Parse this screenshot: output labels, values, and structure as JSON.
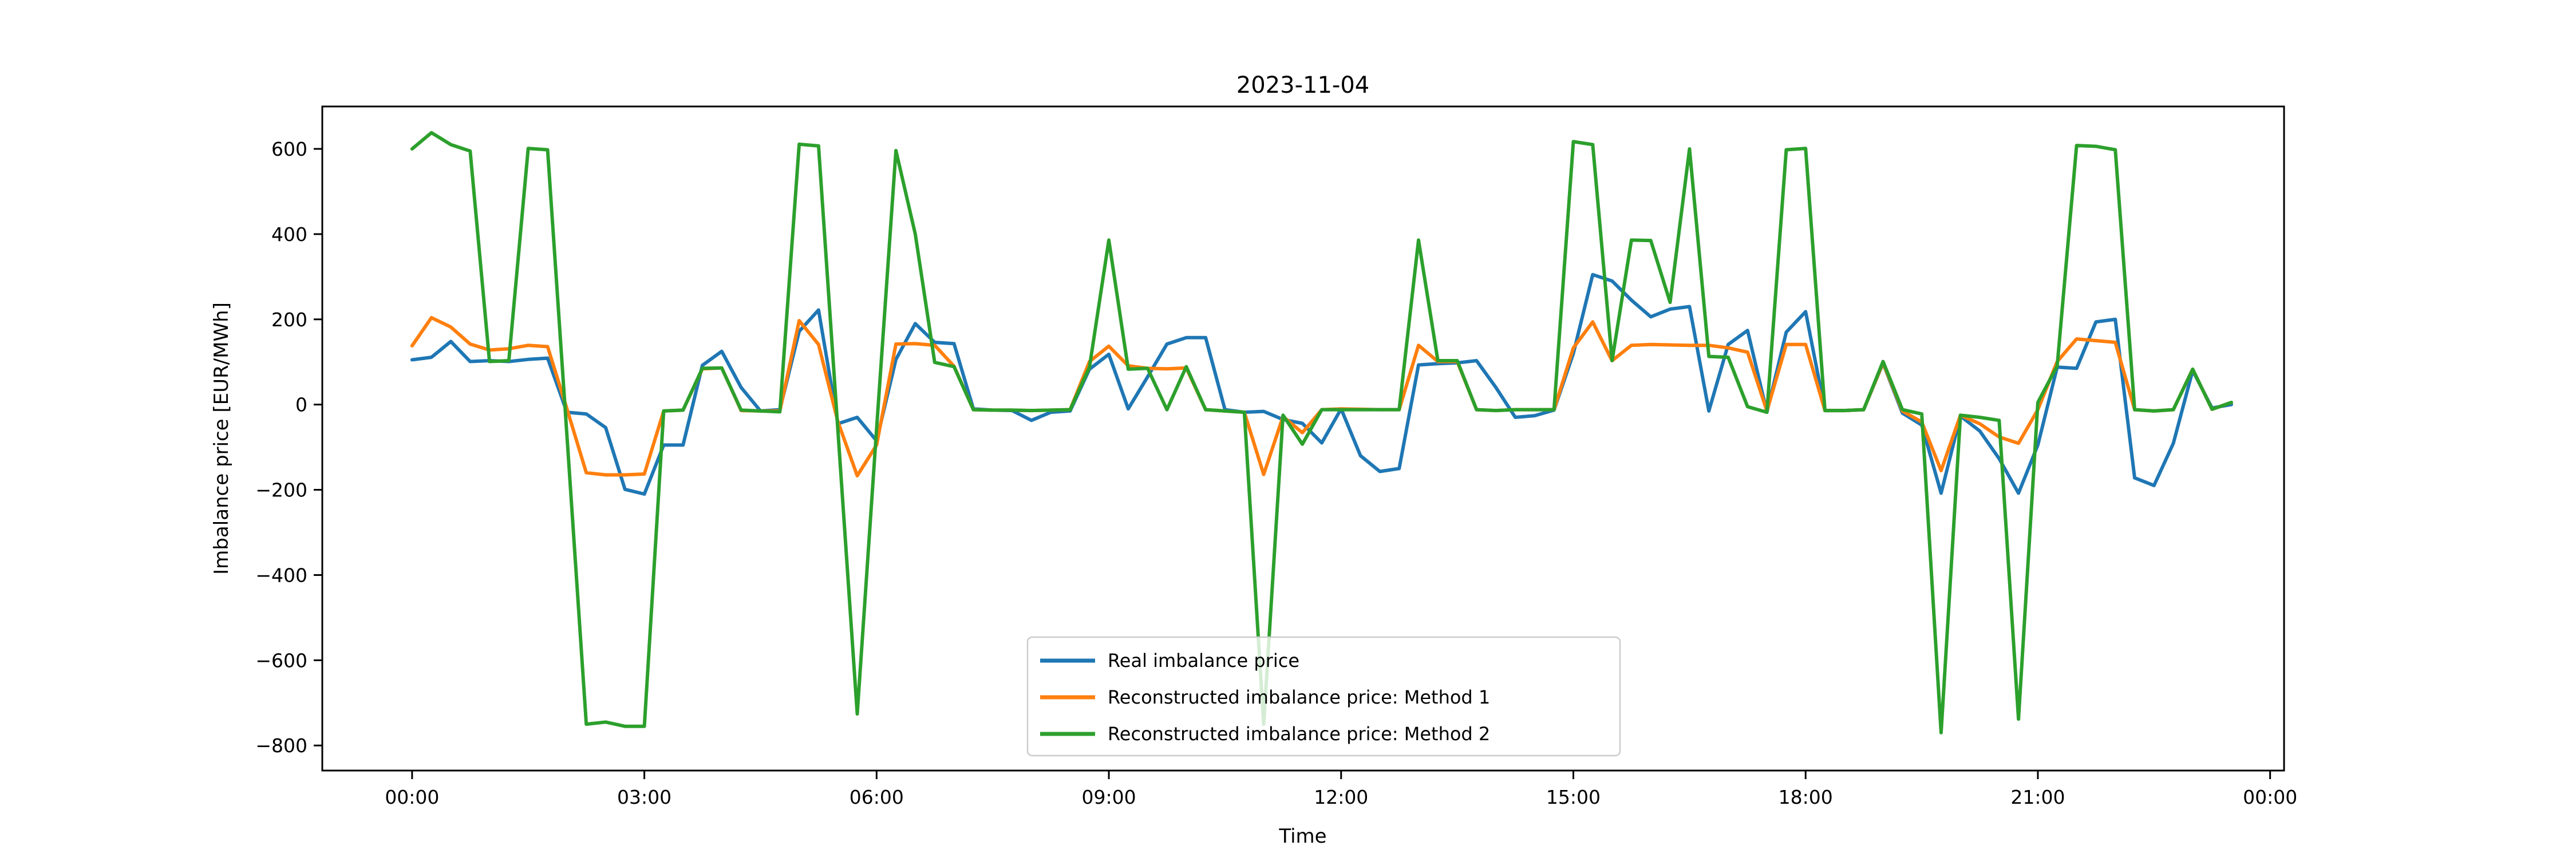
{
  "figure": {
    "title": "2023-11-04",
    "xlabel": "Time",
    "ylabel": "Imbalance price [EUR/MWh]",
    "background": "#ffffff",
    "frame_color": "#000000"
  },
  "legend": {
    "entries": [
      {
        "label": "Real imbalance price",
        "color": "#1f77b4"
      },
      {
        "label": "Reconstructed imbalance price: Method 1",
        "color": "#ff7f0e"
      },
      {
        "label": "Reconstructed imbalance price: Method 2",
        "color": "#2ca02c"
      }
    ],
    "border_color": "#cccccc",
    "background_opacity": 0.8
  },
  "chart_data": {
    "type": "line",
    "title": "2023-11-04",
    "xlabel": "Time",
    "ylabel": "Imbalance price [EUR/MWh]",
    "grid": false,
    "legend_position": "lower center",
    "ylim": [
      -858.8,
      699.5
    ],
    "xlim_hours": [
      -1.16,
      24.18
    ],
    "yticks": [
      600,
      400,
      200,
      0,
      -200,
      -400,
      -600,
      -800
    ],
    "ytick_labels": [
      "600",
      "400",
      "200",
      "0",
      "−200",
      "−400",
      "−600",
      "−800"
    ],
    "xtick_hours": [
      0,
      3,
      6,
      9,
      12,
      15,
      18,
      21,
      24
    ],
    "xtick_labels": [
      "00:00",
      "03:00",
      "06:00",
      "09:00",
      "12:00",
      "15:00",
      "18:00",
      "21:00",
      "00:00"
    ],
    "x": [
      "00:00",
      "00:15",
      "00:30",
      "00:45",
      "01:00",
      "01:15",
      "01:30",
      "01:45",
      "02:00",
      "02:15",
      "02:30",
      "02:45",
      "03:00",
      "03:15",
      "03:30",
      "03:45",
      "04:00",
      "04:15",
      "04:30",
      "04:45",
      "05:00",
      "05:15",
      "05:30",
      "05:45",
      "06:00",
      "06:15",
      "06:30",
      "06:45",
      "07:00",
      "07:15",
      "07:30",
      "07:45",
      "08:00",
      "08:15",
      "08:30",
      "08:45",
      "09:00",
      "09:15",
      "09:30",
      "09:45",
      "10:00",
      "10:15",
      "10:30",
      "10:45",
      "11:00",
      "11:15",
      "11:30",
      "11:45",
      "12:00",
      "12:15",
      "12:30",
      "12:45",
      "13:00",
      "13:15",
      "13:30",
      "13:45",
      "14:00",
      "14:15",
      "14:30",
      "14:45",
      "15:00",
      "15:15",
      "15:30",
      "15:45",
      "16:00",
      "16:15",
      "16:30",
      "16:45",
      "17:00",
      "17:15",
      "17:30",
      "17:45",
      "18:00",
      "18:15",
      "18:30",
      "18:45",
      "19:00",
      "19:15",
      "19:30",
      "19:45",
      "20:00",
      "20:15",
      "20:30",
      "20:45",
      "21:00",
      "21:15",
      "21:30",
      "21:45",
      "22:00",
      "22:15",
      "22:30",
      "22:45",
      "23:00",
      "23:15",
      "23:30"
    ],
    "series": [
      {
        "name": "Real imbalance price",
        "color": "#1f77b4",
        "values": [
          105,
          111,
          148,
          101,
          103,
          101,
          106,
          109,
          -18,
          -22,
          -54,
          -199,
          -210,
          -95,
          -95,
          92,
          125,
          40,
          -15,
          -12,
          172,
          222,
          -45,
          -30,
          -85,
          106,
          190,
          146,
          143,
          -10,
          -13,
          -14,
          -37,
          -18,
          -15,
          83,
          118,
          -10,
          65,
          142,
          157,
          157,
          -12,
          -18,
          -16,
          -35,
          -44,
          -90,
          -10,
          -120,
          -157,
          -150,
          93,
          96,
          98,
          103,
          40,
          -30,
          -26,
          -13,
          120,
          305,
          290,
          245,
          206,
          224,
          230,
          -15,
          141,
          174,
          -18,
          170,
          218,
          -14,
          -14,
          -12,
          97,
          -20,
          -48,
          -208,
          -27,
          -62,
          -127,
          -208,
          -95,
          88,
          85,
          194,
          200,
          -172,
          -190,
          -91,
          80,
          -8,
          0
        ]
      },
      {
        "name": "Reconstructed imbalance price: Method 1",
        "color": "#ff7f0e",
        "values": [
          138,
          204,
          182,
          142,
          128,
          131,
          139,
          136,
          -10,
          -160,
          -165,
          -165,
          -163,
          -15,
          -13,
          84,
          86,
          -14,
          -15,
          -15,
          197,
          141,
          -40,
          -167,
          -95,
          142,
          143,
          139,
          90,
          -12,
          -13,
          -13,
          -14,
          -13,
          -12,
          101,
          137,
          91,
          85,
          84,
          86,
          -12,
          -15,
          -18,
          -164,
          -28,
          -66,
          -12,
          -10,
          -11,
          -12,
          -12,
          139,
          101,
          101,
          -12,
          -14,
          -12,
          -12,
          -12,
          133,
          194,
          103,
          139,
          141,
          140,
          139,
          139,
          133,
          123,
          -15,
          141,
          141,
          -14,
          -14,
          -12,
          98,
          -15,
          -41,
          -155,
          -25,
          -45,
          -76,
          -91,
          -12,
          101,
          154,
          150,
          146,
          -12,
          -15,
          -12,
          83,
          -11,
          5
        ]
      },
      {
        "name": "Reconstructed imbalance price: Method 2",
        "color": "#2ca02c",
        "values": [
          600,
          638,
          610,
          595,
          101,
          103,
          601,
          598,
          -73,
          -750,
          -745,
          -755,
          -755,
          -15,
          -13,
          85,
          86,
          -13,
          -15,
          -17,
          611,
          607,
          -60,
          -726,
          -57,
          596,
          400,
          99,
          89,
          -12,
          -13,
          -13,
          -14,
          -13,
          -12,
          88,
          386,
          83,
          85,
          -12,
          89,
          -12,
          -15,
          -18,
          -750,
          -25,
          -93,
          -12,
          -12,
          -12,
          -12,
          -12,
          386,
          103,
          103,
          -12,
          -14,
          -12,
          -12,
          -12,
          617,
          610,
          103,
          386,
          385,
          240,
          600,
          113,
          111,
          -5,
          -18,
          598,
          601,
          -14,
          -14,
          -12,
          101,
          -12,
          -22,
          -770,
          -25,
          -30,
          -37,
          -738,
          5,
          91,
          608,
          606,
          598,
          -12,
          -15,
          -12,
          83,
          -11,
          5
        ]
      }
    ]
  }
}
